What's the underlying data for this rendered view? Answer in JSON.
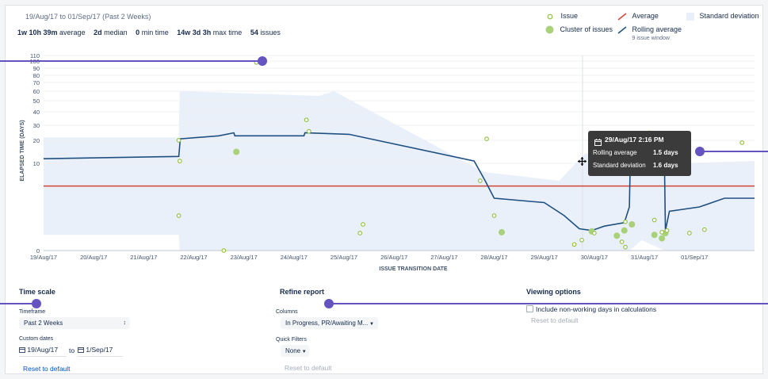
{
  "header": {
    "date_range": "19/Aug/17 to 01/Sep/17 (Past 2 Weeks)",
    "stats": [
      {
        "value": "1w 10h 39m",
        "label": "average"
      },
      {
        "value": "2d",
        "label": "median"
      },
      {
        "value": "0",
        "label": "min time"
      },
      {
        "value": "14w 3d 3h",
        "label": "max time"
      },
      {
        "value": "54",
        "label": "issues"
      }
    ]
  },
  "legend": {
    "issue": "Issue",
    "cluster": "Cluster of issues",
    "average": "Average",
    "rolling": "Rolling average",
    "rolling_sub": "9 issue window",
    "stddev": "Standard deviation"
  },
  "colors": {
    "issue": "#8fbf3c",
    "cluster": "#a8d17a",
    "average": "#d04437",
    "rolling": "#205081",
    "stddev": "#e9f0f9",
    "callout": "#6554c0",
    "tooltip_bg": "#3b3b3b"
  },
  "tooltip": {
    "date": "29/Aug/17 2:16 PM",
    "rows": [
      {
        "label": "Rolling average",
        "value": "1.5 days"
      },
      {
        "label": "Standard deviation",
        "value": "1.6 days"
      }
    ]
  },
  "chart_data": {
    "type": "scatter",
    "xlabel": "ISSUE TRANSITION DATE",
    "ylabel": "ELAPSED TIME (DAYS)",
    "x_ticks": [
      "19/Aug/17",
      "20/Aug/17",
      "21/Aug/17",
      "22/Aug/17",
      "23/Aug/17",
      "24/Aug/17",
      "25/Aug/17",
      "26/Aug/17",
      "27/Aug/17",
      "28/Aug/17",
      "29/Aug/17",
      "30/Aug/17",
      "31/Aug/17",
      "01/Sep/17"
    ],
    "y_ticks": [
      0,
      10,
      20,
      30,
      40,
      50,
      60,
      70,
      80,
      90,
      100,
      110
    ],
    "y_scale": "compressed (non-linear)",
    "xlim_days": [
      0,
      14.2
    ],
    "average_days": 7.4,
    "issues": [
      {
        "x": 2.7,
        "y": 20
      },
      {
        "x": 2.72,
        "y": 11
      },
      {
        "x": 2.7,
        "y": 4
      },
      {
        "x": 3.6,
        "y": 0
      },
      {
        "x": 4.25,
        "y": 98
      },
      {
        "x": 5.25,
        "y": 34
      },
      {
        "x": 5.3,
        "y": 26
      },
      {
        "x": 6.38,
        "y": 3
      },
      {
        "x": 6.32,
        "y": 2
      },
      {
        "x": 8.85,
        "y": 21
      },
      {
        "x": 8.72,
        "y": 8
      },
      {
        "x": 9.0,
        "y": 4
      },
      {
        "x": 10.6,
        "y": 0.7
      },
      {
        "x": 10.75,
        "y": 1.2
      },
      {
        "x": 11.0,
        "y": 2
      },
      {
        "x": 11.55,
        "y": 1
      },
      {
        "x": 11.62,
        "y": 0.4
      },
      {
        "x": 11.62,
        "y": 3.3
      },
      {
        "x": 12.1,
        "y": 25
      },
      {
        "x": 12.2,
        "y": 3.5
      },
      {
        "x": 12.35,
        "y": 2.1
      },
      {
        "x": 12.45,
        "y": 2.3
      },
      {
        "x": 12.9,
        "y": 2
      },
      {
        "x": 13.2,
        "y": 2.4
      },
      {
        "x": 13.95,
        "y": 19
      }
    ],
    "clusters": [
      {
        "x": 3.85,
        "y": 15
      },
      {
        "x": 9.15,
        "y": 2.1
      },
      {
        "x": 10.95,
        "y": 2.2
      },
      {
        "x": 11.45,
        "y": 1.7
      },
      {
        "x": 11.6,
        "y": 2.3
      },
      {
        "x": 11.75,
        "y": 3.0
      },
      {
        "x": 12.2,
        "y": 1.8
      },
      {
        "x": 12.35,
        "y": 1.4
      },
      {
        "x": 12.42,
        "y": 2.0
      }
    ],
    "rolling_average": [
      {
        "x": 0.0,
        "y": 12
      },
      {
        "x": 2.7,
        "y": 13
      },
      {
        "x": 2.73,
        "y": 21
      },
      {
        "x": 3.5,
        "y": 23
      },
      {
        "x": 3.8,
        "y": 25
      },
      {
        "x": 3.82,
        "y": 23
      },
      {
        "x": 5.2,
        "y": 23
      },
      {
        "x": 5.22,
        "y": 25
      },
      {
        "x": 6.1,
        "y": 24
      },
      {
        "x": 8.6,
        "y": 11
      },
      {
        "x": 8.82,
        "y": 8
      },
      {
        "x": 9.0,
        "y": 6
      },
      {
        "x": 10.0,
        "y": 5.5
      },
      {
        "x": 10.4,
        "y": 4
      },
      {
        "x": 10.7,
        "y": 2.5
      },
      {
        "x": 10.95,
        "y": 2.3
      },
      {
        "x": 11.2,
        "y": 2.8
      },
      {
        "x": 11.6,
        "y": 3.2
      },
      {
        "x": 11.7,
        "y": 5
      },
      {
        "x": 11.72,
        "y": 12
      },
      {
        "x": 12.4,
        "y": 12
      },
      {
        "x": 12.42,
        "y": 2.3
      },
      {
        "x": 12.5,
        "y": 4.5
      },
      {
        "x": 13.1,
        "y": 5
      },
      {
        "x": 13.6,
        "y": 6
      },
      {
        "x": 14.2,
        "y": 6
      }
    ],
    "std_dev_band": [
      {
        "x": 0.0,
        "lo": 1.8,
        "hi": 22
      },
      {
        "x": 2.7,
        "lo": 1.8,
        "hi": 22
      },
      {
        "x": 2.72,
        "lo": 0,
        "hi": 60
      },
      {
        "x": 5.5,
        "lo": 0,
        "hi": 55
      },
      {
        "x": 5.8,
        "lo": 0,
        "hi": 60
      },
      {
        "x": 8.8,
        "lo": 0,
        "hi": 9
      },
      {
        "x": 10.3,
        "lo": 0,
        "hi": 8
      },
      {
        "x": 10.8,
        "lo": 0,
        "hi": 14
      },
      {
        "x": 11.7,
        "lo": 0,
        "hi": 17
      },
      {
        "x": 11.95,
        "lo": 1.2,
        "hi": 17
      },
      {
        "x": 12.4,
        "lo": 0,
        "hi": 14
      },
      {
        "x": 12.6,
        "lo": 0,
        "hi": 10
      },
      {
        "x": 14.2,
        "lo": 0,
        "hi": 11
      }
    ]
  },
  "time_scale": {
    "title": "Time scale",
    "timeframe_label": "Timeframe",
    "timeframe_value": "Past 2 Weeks",
    "custom_dates_label": "Custom dates",
    "from": "19/Aug/17",
    "to_word": "to",
    "to": "1/Sep/17",
    "reset": "Reset to default"
  },
  "refine": {
    "title": "Refine report",
    "columns_label": "Columns",
    "columns_value": "In Progress, PR/Awaiting M...",
    "quick_filters_label": "Quick Filters",
    "quick_filters_value": "None",
    "reset": "Reset to default"
  },
  "viewing": {
    "title": "Viewing options",
    "checkbox_label": "Include non-working days in calculations",
    "reset": "Reset to default"
  }
}
